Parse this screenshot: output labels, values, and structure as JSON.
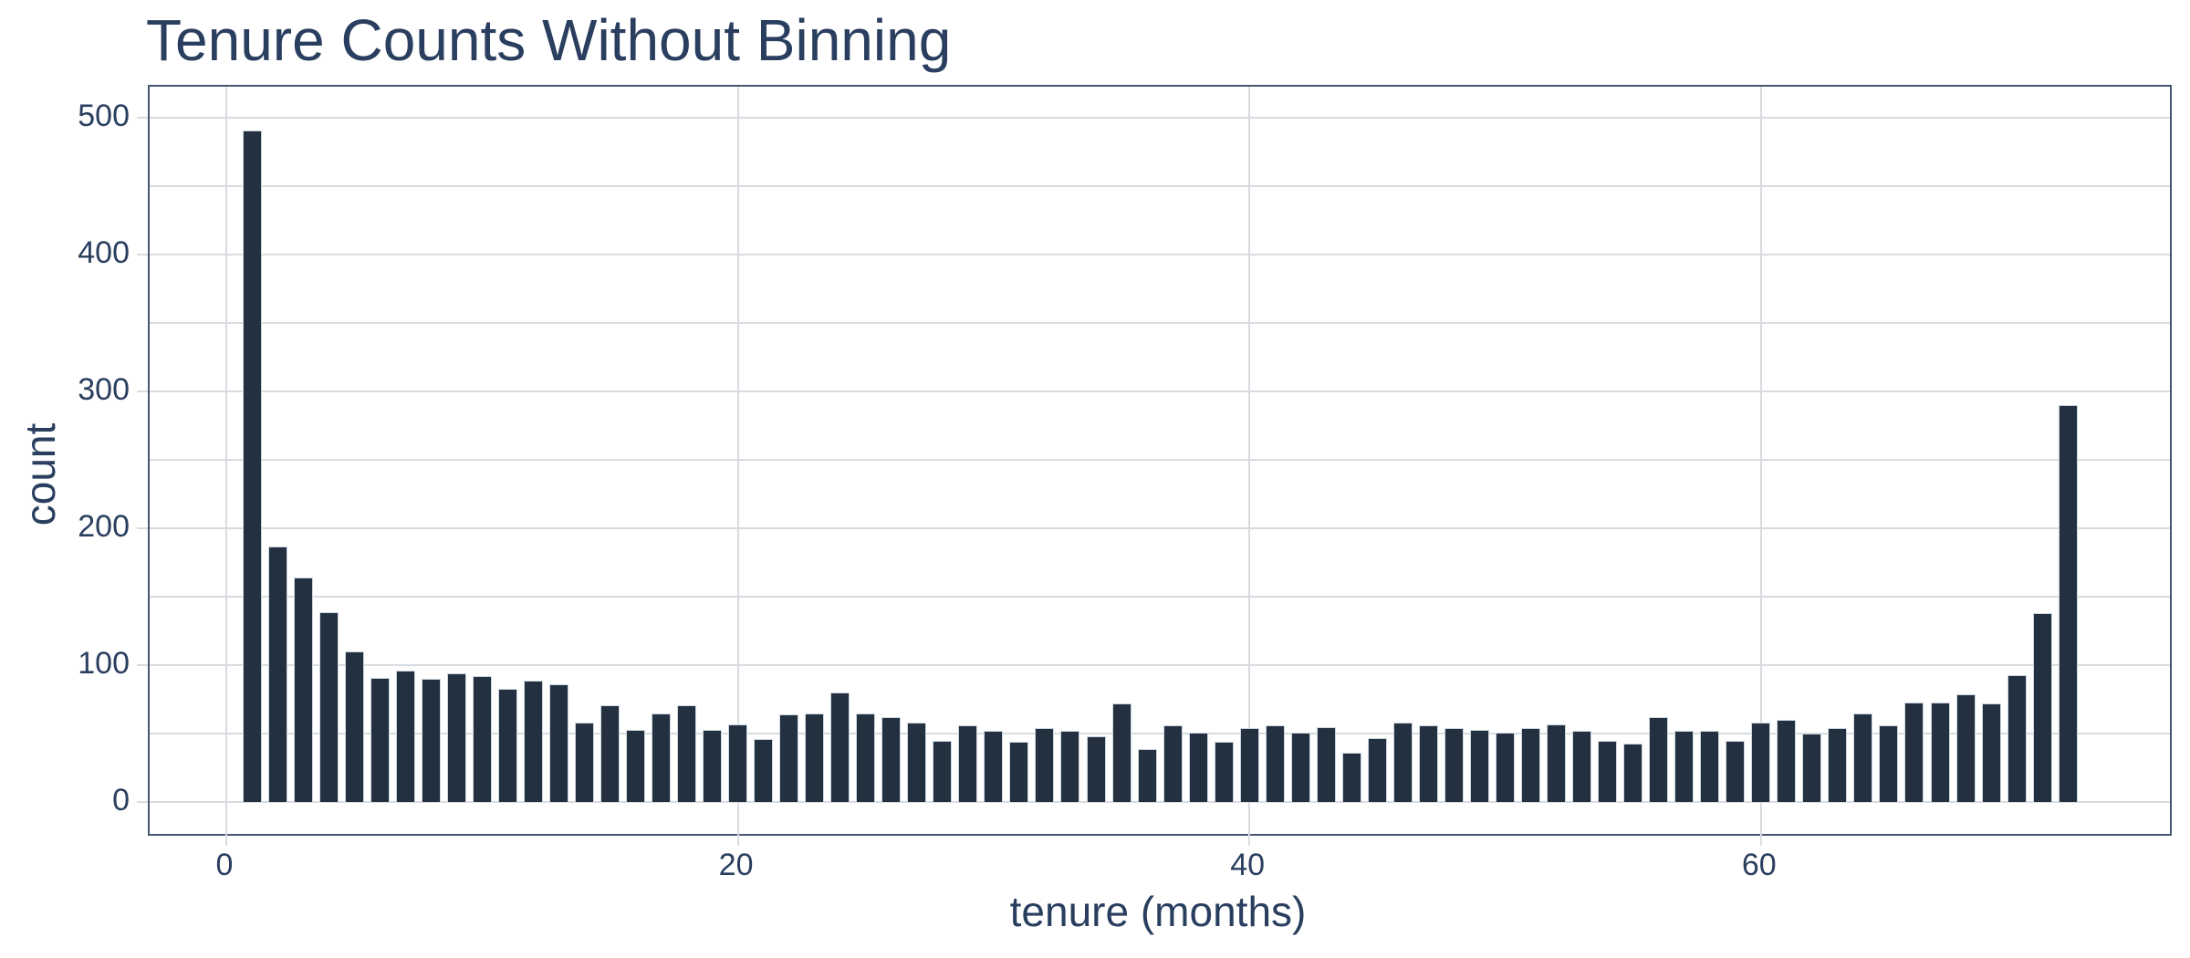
{
  "figure": {
    "title": "Tenure Counts Without Binning",
    "x_axis_title": "tenure (months)",
    "y_axis_title": "count"
  },
  "chart_data": {
    "type": "bar",
    "title": "Tenure Counts Without Binning",
    "xlabel": "tenure (months)",
    "ylabel": "count",
    "x": [
      1,
      2,
      3,
      4,
      5,
      6,
      7,
      8,
      9,
      10,
      11,
      12,
      13,
      14,
      15,
      16,
      17,
      18,
      19,
      20,
      21,
      22,
      23,
      24,
      25,
      26,
      27,
      28,
      29,
      30,
      31,
      32,
      33,
      34,
      35,
      36,
      37,
      38,
      39,
      40,
      41,
      42,
      43,
      44,
      45,
      46,
      47,
      48,
      49,
      50,
      51,
      52,
      53,
      54,
      55,
      56,
      57,
      58,
      59,
      60,
      61,
      62,
      63,
      64,
      65,
      66,
      67,
      68,
      69,
      70,
      71,
      72
    ],
    "values": [
      491,
      187,
      164,
      139,
      110,
      91,
      96,
      90,
      94,
      92,
      83,
      89,
      86,
      58,
      71,
      53,
      65,
      71,
      53,
      57,
      46,
      64,
      65,
      80,
      65,
      62,
      58,
      45,
      56,
      52,
      44,
      54,
      52,
      48,
      72,
      39,
      56,
      51,
      44,
      54,
      56,
      51,
      55,
      36,
      47,
      58,
      56,
      54,
      53,
      51,
      54,
      57,
      52,
      45,
      43,
      62,
      52,
      52,
      45,
      58,
      60,
      50,
      54,
      65,
      56,
      73,
      73,
      79,
      72,
      93,
      138,
      290
    ],
    "x_tick_labels": [
      0,
      20,
      40,
      60
    ],
    "y_tick_labels": [
      0,
      100,
      200,
      300,
      400,
      500
    ],
    "y_minor_grid_step": 50,
    "ylim": [
      0,
      522
    ],
    "xlim": [
      -3,
      76
    ],
    "grid": "on",
    "legend": "none",
    "colors": {
      "bar_fill": "#223040",
      "bar_edge": "#cdd6de",
      "gridline": "#d8dce1",
      "axis_border": "#46566e",
      "text": "#2a3f5f",
      "background": "#ffffff"
    }
  }
}
